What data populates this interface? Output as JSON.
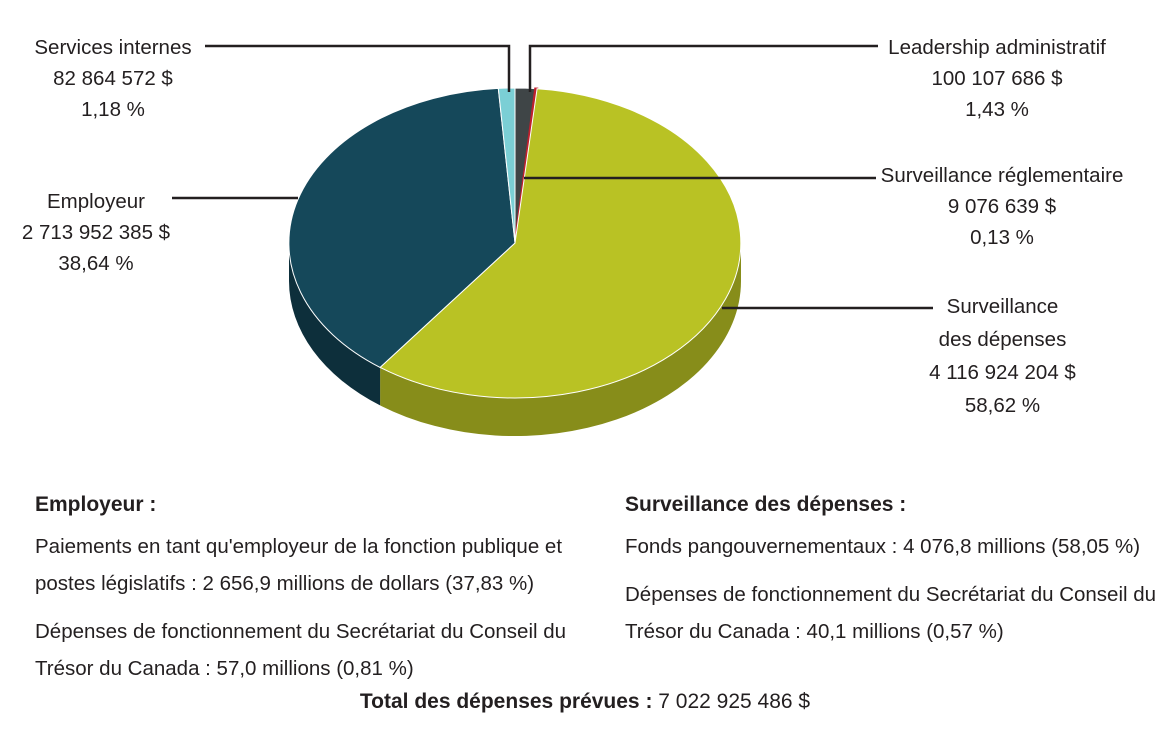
{
  "chart_data": {
    "type": "pie",
    "title": "",
    "start_angle_deg": 0,
    "slices": [
      {
        "label": "Leadership administratif",
        "amount": "100 107 686 $",
        "percent": 1.43,
        "percent_label": "1,43 %",
        "color": "#3f4547",
        "side_color": "#25282a"
      },
      {
        "label": "Surveillance réglementaire",
        "amount": "9 076 639 $",
        "percent": 0.13,
        "percent_label": "0,13 %",
        "color": "#bf1f2c",
        "side_color": "#7c141d"
      },
      {
        "label": "Surveillance des dépenses",
        "amount": "4 116 924 204 $",
        "percent": 58.62,
        "percent_label": "58,62 %",
        "color": "#b9c224",
        "side_color": "#878d1a"
      },
      {
        "label": "Employeur",
        "amount": "2 713 952 385 $",
        "percent": 38.64,
        "percent_label": "38,64 %",
        "color": "#15485a",
        "side_color": "#0d2f3b"
      },
      {
        "label": "Services internes",
        "amount": "82 864 572 $",
        "percent": 1.18,
        "percent_label": "1,18 %",
        "color": "#7bcfd5",
        "side_color": "#54a6ac"
      }
    ],
    "total_label": "Total des dépenses prévues :",
    "total_value": "7 022 925 486 $"
  },
  "callouts": {
    "services_internes": {
      "lines": [
        "Services internes",
        "82 864 572 $",
        "1,18 %"
      ]
    },
    "leadership_administratif": {
      "lines": [
        "Leadership administratif",
        "100 107 686 $",
        "1,43 %"
      ]
    },
    "surveillance_reglementaire": {
      "lines": [
        "Surveillance réglementaire",
        "9 076 639 $",
        "0,13 %"
      ]
    },
    "surveillance_des_depenses": {
      "lines": [
        "Surveillance",
        "des dépenses",
        "4 116 924 204 $",
        "58,62 %"
      ]
    },
    "employeur": {
      "lines": [
        "Employeur",
        "2 713 952 385 $",
        "38,64 %"
      ]
    }
  },
  "notes": {
    "employeur": {
      "heading": "Employeur :",
      "paragraphs": [
        "Paiements en tant qu'employeur de la fonction publique et postes législatifs : 2 656,9 millions de dollars (37,83 %)",
        "Dépenses de fonctionnement du Secrétariat du Conseil du Trésor du Canada : 57,0 millions (0,81 %)"
      ]
    },
    "surveillance_des_depenses": {
      "heading": "Surveillance des dépenses :",
      "paragraphs": [
        "Fonds pangouvernementaux : 4 076,8 millions (58,05 %)",
        "Dépenses de fonctionnement du Secrétariat du Conseil du Trésor du Canada : 40,1 millions (0,57 %)"
      ]
    }
  },
  "total": {
    "label": "Total des dépenses prévues :",
    "value": "7 022 925 486 $"
  }
}
